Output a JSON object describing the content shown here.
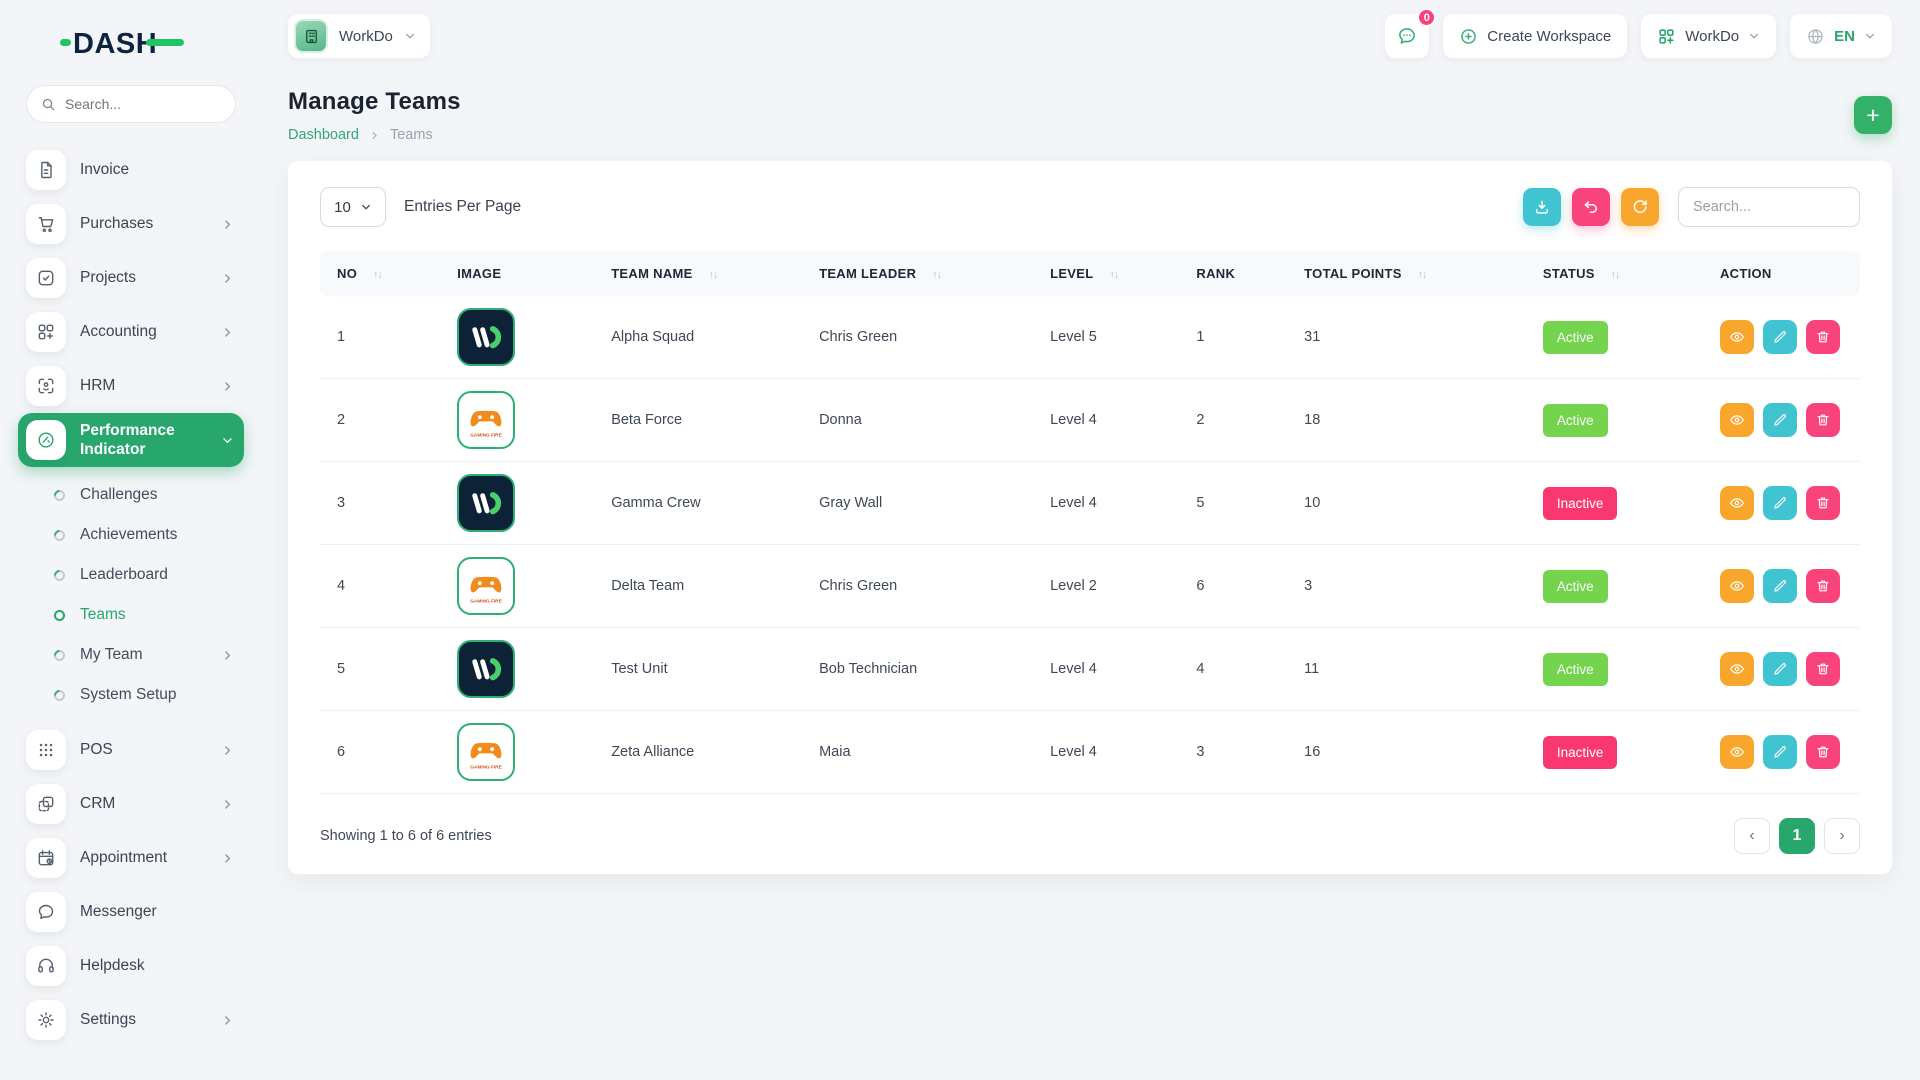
{
  "brand": {
    "logo_text": "DASH"
  },
  "sidebar": {
    "search_placeholder": "Search...",
    "menu": [
      {
        "label": "Invoice",
        "icon": "invoice-icon",
        "chevron": "none"
      },
      {
        "label": "Purchases",
        "icon": "purchases-icon",
        "chevron": "right"
      },
      {
        "label": "Projects",
        "icon": "projects-icon",
        "chevron": "right"
      },
      {
        "label": "Accounting",
        "icon": "accounting-icon",
        "chevron": "right"
      },
      {
        "label": "HRM",
        "icon": "hrm-icon",
        "chevron": "right"
      },
      {
        "label": "Performance Indicator",
        "icon": "performance-gauge-icon",
        "chevron": "down",
        "active": true,
        "children": [
          {
            "label": "Challenges"
          },
          {
            "label": "Achievements"
          },
          {
            "label": "Leaderboard"
          },
          {
            "label": "Teams",
            "active": true
          },
          {
            "label": "My Team",
            "chevron": "right"
          },
          {
            "label": "System Setup"
          }
        ]
      },
      {
        "label": "POS",
        "icon": "pos-icon",
        "chevron": "right"
      },
      {
        "label": "CRM",
        "icon": "crm-icon",
        "chevron": "right"
      },
      {
        "label": "Appointment",
        "icon": "appointment-icon",
        "chevron": "right"
      },
      {
        "label": "Messenger",
        "icon": "messenger-icon",
        "chevron": "none"
      },
      {
        "label": "Helpdesk",
        "icon": "helpdesk-icon",
        "chevron": "none"
      },
      {
        "label": "Settings",
        "icon": "settings-icon",
        "chevron": "right"
      }
    ]
  },
  "topbar": {
    "workspace_selector": "WorkDo",
    "messages_badge": "0",
    "create_workspace": "Create Workspace",
    "workdo_menu": "WorkDo",
    "language": "EN"
  },
  "page": {
    "title": "Manage Teams",
    "breadcrumb": [
      "Dashboard",
      "Teams"
    ]
  },
  "table_card": {
    "entries_select": "10",
    "entries_label": "Entries Per Page",
    "search_placeholder": "Search...",
    "toolbar_icons": [
      "download-icon",
      "undo-icon",
      "refresh-icon"
    ],
    "columns": [
      {
        "label": "NO",
        "sortable": true
      },
      {
        "label": "IMAGE",
        "sortable": false
      },
      {
        "label": "TEAM NAME",
        "sortable": true
      },
      {
        "label": "TEAM LEADER",
        "sortable": true
      },
      {
        "label": "LEVEL",
        "sortable": true
      },
      {
        "label": "RANK",
        "sortable": false
      },
      {
        "label": "TOTAL POINTS",
        "sortable": true
      },
      {
        "label": "STATUS",
        "sortable": true
      },
      {
        "label": "ACTION",
        "sortable": false
      }
    ],
    "rows": [
      {
        "no": "1",
        "image": "wd",
        "team_name": "Alpha Squad",
        "team_leader": "Chris Green",
        "level": "Level 5",
        "rank": "1",
        "total_points": "31",
        "status": "Active"
      },
      {
        "no": "2",
        "image": "gaming",
        "team_name": "Beta Force",
        "team_leader": "Donna",
        "level": "Level 4",
        "rank": "2",
        "total_points": "18",
        "status": "Active"
      },
      {
        "no": "3",
        "image": "wd",
        "team_name": "Gamma Crew",
        "team_leader": "Gray Wall",
        "level": "Level 4",
        "rank": "5",
        "total_points": "10",
        "status": "Inactive"
      },
      {
        "no": "4",
        "image": "gaming",
        "team_name": "Delta Team",
        "team_leader": "Chris Green",
        "level": "Level 2",
        "rank": "6",
        "total_points": "3",
        "status": "Active"
      },
      {
        "no": "5",
        "image": "wd",
        "team_name": "Test Unit",
        "team_leader": "Bob Technician",
        "level": "Level 4",
        "rank": "4",
        "total_points": "11",
        "status": "Active"
      },
      {
        "no": "6",
        "image": "gaming",
        "team_name": "Zeta Alliance",
        "team_leader": "Maia",
        "level": "Level 4",
        "rank": "3",
        "total_points": "16",
        "status": "Inactive"
      }
    ],
    "actions": [
      "view",
      "edit",
      "delete"
    ],
    "footer": "Showing 1 to 6 of 6 entries",
    "pagination": {
      "prev": "‹",
      "current": "1",
      "next": "›"
    }
  },
  "colors": {
    "primary_green": "#27a76c",
    "active_badge": "#74d44d",
    "inactive_badge": "#f8386f",
    "pink": "#f8437b",
    "orange": "#f9a62c",
    "cyan": "#41c4d2",
    "navy_logo": "#0d2440"
  }
}
